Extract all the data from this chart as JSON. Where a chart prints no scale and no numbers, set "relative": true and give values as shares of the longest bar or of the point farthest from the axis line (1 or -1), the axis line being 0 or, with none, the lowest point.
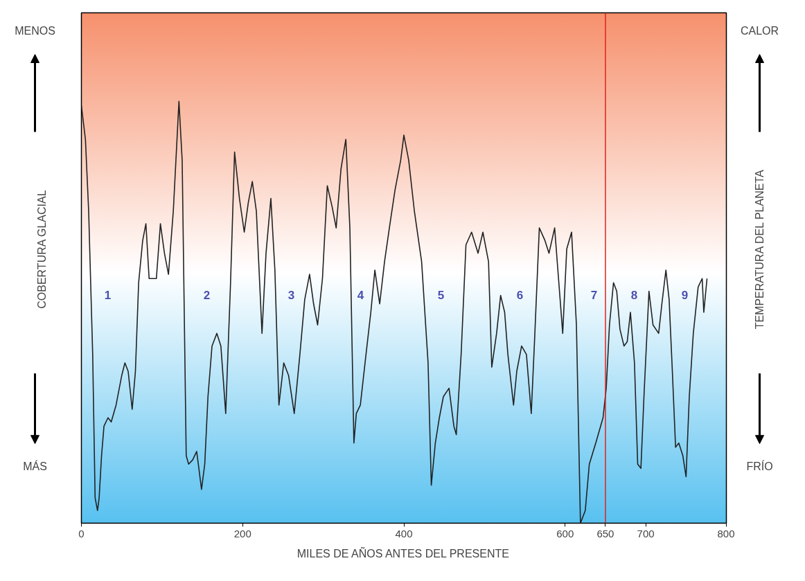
{
  "chart_data": {
    "type": "line",
    "relative": true,
    "xlabel": "MILES DE AÑOS ANTES DEL PRESENTE",
    "ylabel": "COBERTURA GLACIAL",
    "y2label": "TEMPERATURA DEL PLANETA",
    "xlim": [
      0,
      800
    ],
    "xticks": [
      0,
      200,
      400,
      600,
      650,
      700,
      800
    ],
    "tick_labels": "x",
    "grid": false,
    "series": [
      {
        "color": "#222222",
        "x": [
          0,
          5,
          9,
          14,
          17,
          20,
          22,
          25,
          28,
          33,
          37,
          43,
          50,
          54,
          58,
          63,
          67,
          71,
          76,
          80,
          84,
          88,
          93,
          98,
          103,
          108,
          114,
          121,
          125,
          130,
          133,
          138,
          143,
          149,
          153,
          157,
          162,
          168,
          173,
          179,
          185,
          190,
          196,
          202,
          207,
          212,
          217,
          224,
          229,
          235,
          240,
          245,
          251,
          257,
          264,
          271,
          277,
          283,
          288,
          293,
          299,
          305,
          311,
          316,
          322,
          328,
          333,
          338,
          341,
          346,
          353,
          359,
          364,
          370,
          376,
          382,
          389,
          396,
          400,
          406,
          413,
          422,
          430,
          434,
          439,
          444,
          449,
          456,
          462,
          465,
          471,
          477,
          484,
          492,
          498,
          505,
          509,
          515,
          520,
          525,
          529,
          536,
          540,
          546,
          552,
          558,
          562,
          568,
          575,
          580,
          587,
          591,
          597,
          602,
          608,
          614,
          619,
          625,
          630,
          638,
          647,
          651,
          655,
          660,
          664,
          668,
          673,
          677,
          681,
          686,
          690,
          694,
          698,
          704,
          709,
          716,
          720,
          725,
          729,
          733,
          737,
          741,
          746,
          750,
          754,
          759,
          765,
          770,
          772,
          776
        ],
        "values": [
          0.99,
          0.91,
          0.74,
          0.4,
          0.06,
          0.03,
          0.06,
          0.16,
          0.23,
          0.25,
          0.24,
          0.28,
          0.35,
          0.38,
          0.36,
          0.27,
          0.36,
          0.57,
          0.67,
          0.71,
          0.58,
          0.58,
          0.58,
          0.71,
          0.64,
          0.59,
          0.74,
          1.0,
          0.86,
          0.16,
          0.14,
          0.15,
          0.17,
          0.08,
          0.14,
          0.3,
          0.42,
          0.45,
          0.42,
          0.26,
          0.57,
          0.88,
          0.77,
          0.69,
          0.76,
          0.81,
          0.74,
          0.45,
          0.64,
          0.77,
          0.6,
          0.28,
          0.38,
          0.35,
          0.26,
          0.4,
          0.53,
          0.59,
          0.52,
          0.47,
          0.58,
          0.8,
          0.75,
          0.7,
          0.84,
          0.91,
          0.7,
          0.19,
          0.26,
          0.28,
          0.4,
          0.5,
          0.6,
          0.52,
          0.62,
          0.7,
          0.79,
          0.86,
          0.92,
          0.86,
          0.74,
          0.62,
          0.38,
          0.09,
          0.19,
          0.25,
          0.3,
          0.32,
          0.23,
          0.21,
          0.4,
          0.66,
          0.69,
          0.64,
          0.69,
          0.62,
          0.37,
          0.45,
          0.54,
          0.5,
          0.4,
          0.28,
          0.36,
          0.42,
          0.4,
          0.26,
          0.43,
          0.7,
          0.67,
          0.64,
          0.7,
          0.6,
          0.45,
          0.65,
          0.69,
          0.47,
          0.0,
          0.03,
          0.14,
          0.19,
          0.25,
          0.32,
          0.47,
          0.57,
          0.55,
          0.46,
          0.42,
          0.43,
          0.5,
          0.38,
          0.14,
          0.13,
          0.31,
          0.55,
          0.47,
          0.45,
          0.52,
          0.6,
          0.53,
          0.36,
          0.18,
          0.19,
          0.16,
          0.11,
          0.3,
          0.45,
          0.56,
          0.58,
          0.5,
          0.58
        ]
      }
    ],
    "ref_lines": [
      {
        "axis": "x",
        "value": 650,
        "color": "#e0201c"
      }
    ],
    "annotations": [
      "MENOS",
      "MÁS",
      "CALOR",
      "FRÍO",
      "1",
      "2",
      "3",
      "4",
      "5",
      "6",
      "7",
      "8",
      "9"
    ]
  }
}
